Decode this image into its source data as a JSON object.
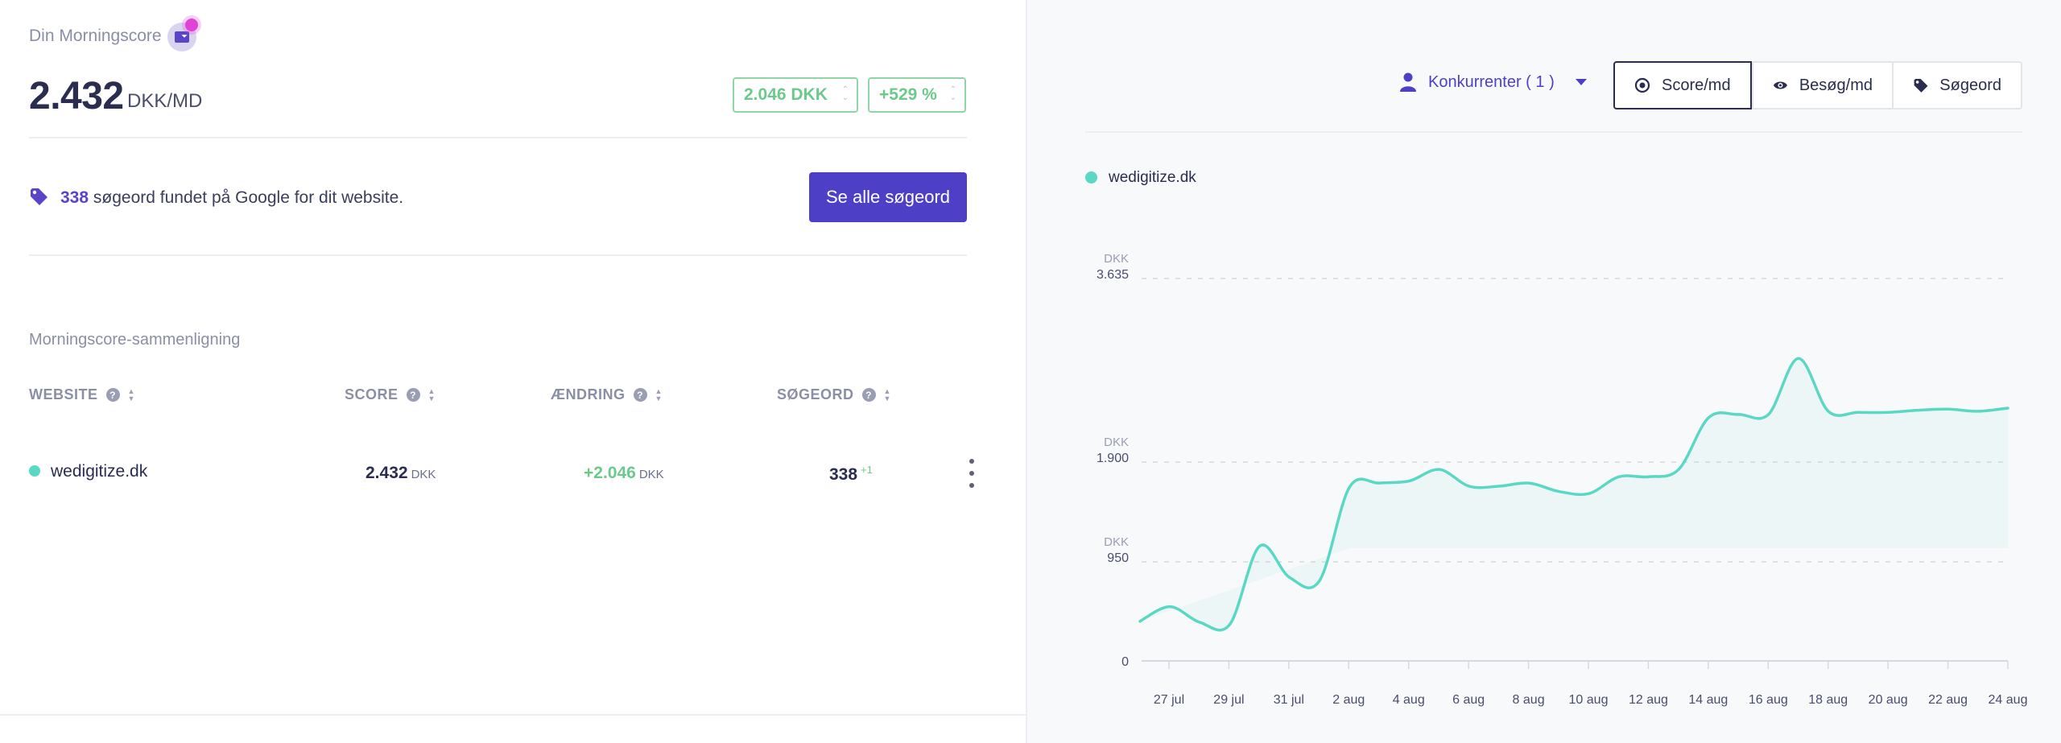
{
  "header": {
    "title": "Din Morningscore",
    "score": "2.432",
    "unit": "DKK/MD",
    "change_value": "2.046 DKK",
    "change_percent": "+529 %"
  },
  "keywords_banner": {
    "count": "338",
    "text": " søgeord fundet på Google for dit website.",
    "button_label": "Se alle søgeord"
  },
  "comparison": {
    "title": "Morningscore-sammenligning",
    "columns": [
      "WEBSITE",
      "SCORE",
      "ÆNDRING",
      "SØGEORD"
    ],
    "rows": [
      {
        "website": "wedigitize.dk",
        "score": "2.432",
        "score_unit": "DKK",
        "change": "+2.046",
        "change_unit": "DKK",
        "keywords": "338",
        "keywords_delta": "+1"
      }
    ]
  },
  "controls": {
    "competitors_label": "Konkurrenter ( 1 )",
    "tabs": [
      {
        "label": "Score/md",
        "icon": "target-icon",
        "active": true
      },
      {
        "label": "Besøg/md",
        "icon": "eye-icon",
        "active": false
      },
      {
        "label": "Søgeord",
        "icon": "tag-icon",
        "active": false
      }
    ]
  },
  "colors": {
    "accent": "#4e3fc7",
    "series": "#5ad8c3",
    "positive": "#6cc98c"
  },
  "chart_data": {
    "type": "area",
    "legend": [
      "wedigitize.dk"
    ],
    "y_ticks": [
      {
        "value": 0,
        "label": "0",
        "unit": ""
      },
      {
        "value": 950,
        "label": "950",
        "unit": "DKK"
      },
      {
        "value": 1900,
        "label": "1.900",
        "unit": "DKK"
      },
      {
        "value": 3635,
        "label": "3.635",
        "unit": "DKK"
      }
    ],
    "x_labels": [
      "27 jul",
      "29 jul",
      "31 jul",
      "2 aug",
      "4 aug",
      "6 aug",
      "8 aug",
      "10 aug",
      "12 aug",
      "14 aug",
      "16 aug",
      "18 aug",
      "20 aug",
      "22 aug",
      "24 aug"
    ],
    "ylim": [
      0,
      3635
    ],
    "grid": "dashed-horizontal",
    "series": [
      {
        "name": "wedigitize.dk",
        "x_start": "26 jul",
        "x_end": "24 aug",
        "values": [
          380,
          520,
          370,
          350,
          1100,
          800,
          770,
          1660,
          1700,
          1720,
          1830,
          1670,
          1670,
          1700,
          1620,
          1600,
          1760,
          1760,
          1830,
          2320,
          2350,
          2350,
          2880,
          2380,
          2370,
          2370,
          2390,
          2400,
          2380,
          2410
        ]
      }
    ]
  }
}
